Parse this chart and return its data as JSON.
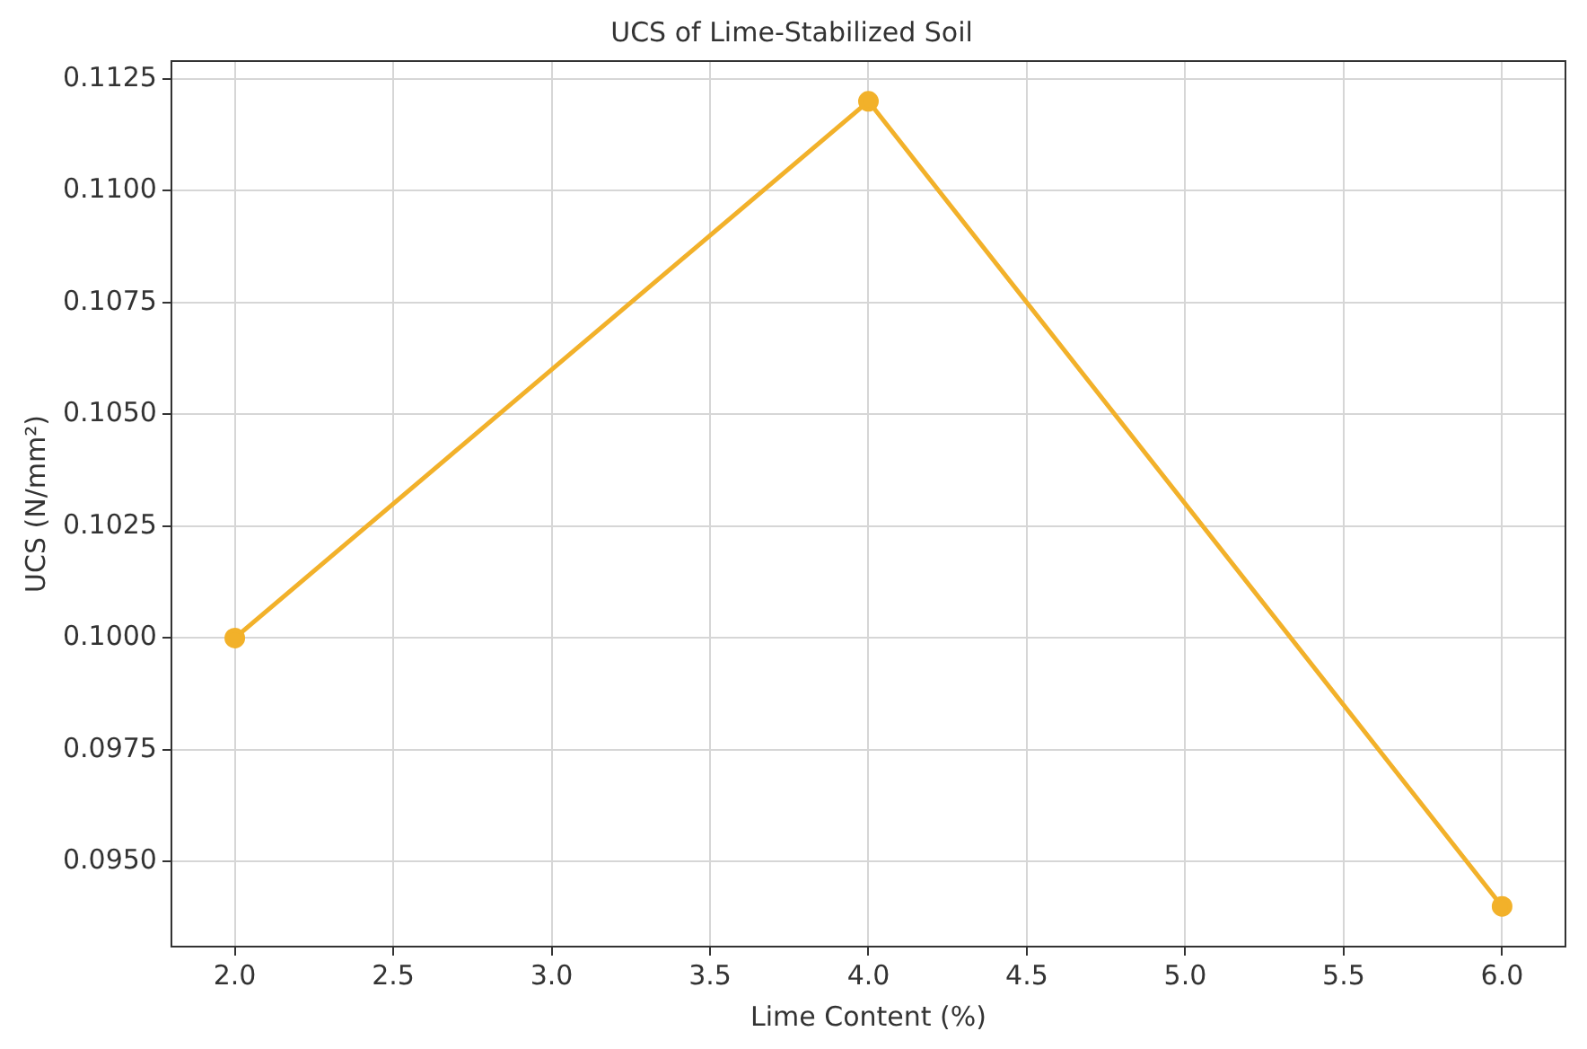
{
  "chart_data": {
    "type": "line",
    "title": "UCS of Lime-Stabilized Soil",
    "xlabel": "Lime Content (%)",
    "ylabel": "UCS (N/mm²)",
    "x": [
      2,
      4,
      6
    ],
    "series": [
      {
        "color": "#f2b12a",
        "values": [
          0.1,
          0.112,
          0.094
        ]
      }
    ],
    "xlim": [
      1.8,
      6.2
    ],
    "xticks": [
      {
        "value": 2,
        "label": "2.0"
      },
      {
        "value": 2.5,
        "label": "2.5"
      },
      {
        "value": 3,
        "label": "3.0"
      },
      {
        "value": 3.5,
        "label": "3.5"
      },
      {
        "value": 4,
        "label": "4.0"
      },
      {
        "value": 4.5,
        "label": "4.5"
      },
      {
        "value": 5,
        "label": "5.0"
      },
      {
        "value": 5.5,
        "label": "5.5"
      },
      {
        "value": 6,
        "label": "6.0"
      }
    ],
    "ylim": [
      0.0931,
      0.1129
    ],
    "yticks": [
      {
        "value": 0.095,
        "label": "0.0950"
      },
      {
        "value": 0.0975,
        "label": "0.0975"
      },
      {
        "value": 0.1,
        "label": "0.1000"
      },
      {
        "value": 0.1025,
        "label": "0.1025"
      },
      {
        "value": 0.105,
        "label": "0.1050"
      },
      {
        "value": 0.1075,
        "label": "0.1075"
      },
      {
        "value": 0.11,
        "label": "0.1100"
      },
      {
        "value": 0.1125,
        "label": "0.1125"
      }
    ],
    "grid": true,
    "marker": "circle",
    "line_style": "solid",
    "legend": false
  }
}
